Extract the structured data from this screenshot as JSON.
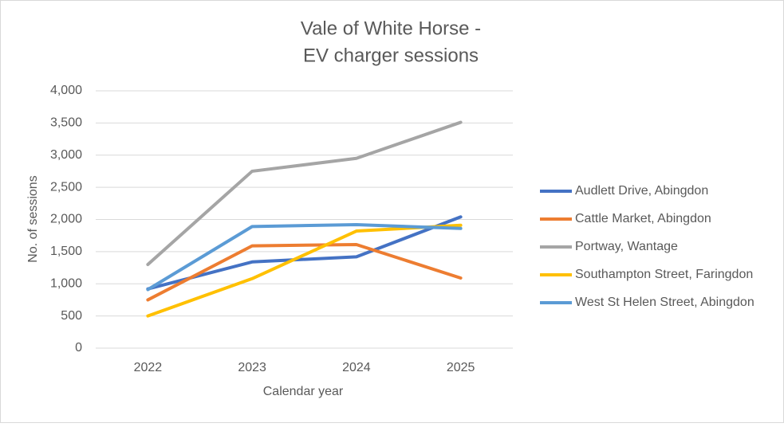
{
  "chart_data": {
    "type": "line",
    "title": [
      "Vale of White Horse -",
      "EV charger sessions"
    ],
    "x_label": "Calendar year",
    "y_label": "No. of sessions",
    "categories": [
      "2022",
      "2023",
      "2024",
      "2025"
    ],
    "series": [
      {
        "name": "Audlett Drive, Abingdon",
        "color": "#4472c4",
        "values": [
          920,
          1340,
          1420,
          2040
        ]
      },
      {
        "name": "Cattle Market, Abingdon",
        "color": "#ed7d31",
        "values": [
          750,
          1590,
          1610,
          1090
        ]
      },
      {
        "name": "Portway, Wantage",
        "color": "#a5a5a5",
        "values": [
          1300,
          2750,
          2950,
          3510
        ]
      },
      {
        "name": "Southampton Street, Faringdon",
        "color": "#ffc000",
        "values": [
          500,
          1080,
          1820,
          1910
        ]
      },
      {
        "name": "West St Helen Street, Abingdon",
        "color": "#5b9bd5",
        "values": [
          910,
          1890,
          1920,
          1860
        ]
      }
    ],
    "ylim": [
      0,
      4000
    ],
    "yticks": [
      0,
      500,
      {
        "value": 1000,
        "label": "1,000"
      },
      {
        "value": 1500,
        "label": "1,500"
      },
      {
        "value": 2000,
        "label": "2,000"
      },
      {
        "value": 2500,
        "label": "2,500"
      },
      {
        "value": 3000,
        "label": "3,000"
      },
      {
        "value": 3500,
        "label": "3,500"
      },
      {
        "value": 4000,
        "label": "4,000"
      }
    ],
    "grid": true,
    "legend": "right"
  }
}
